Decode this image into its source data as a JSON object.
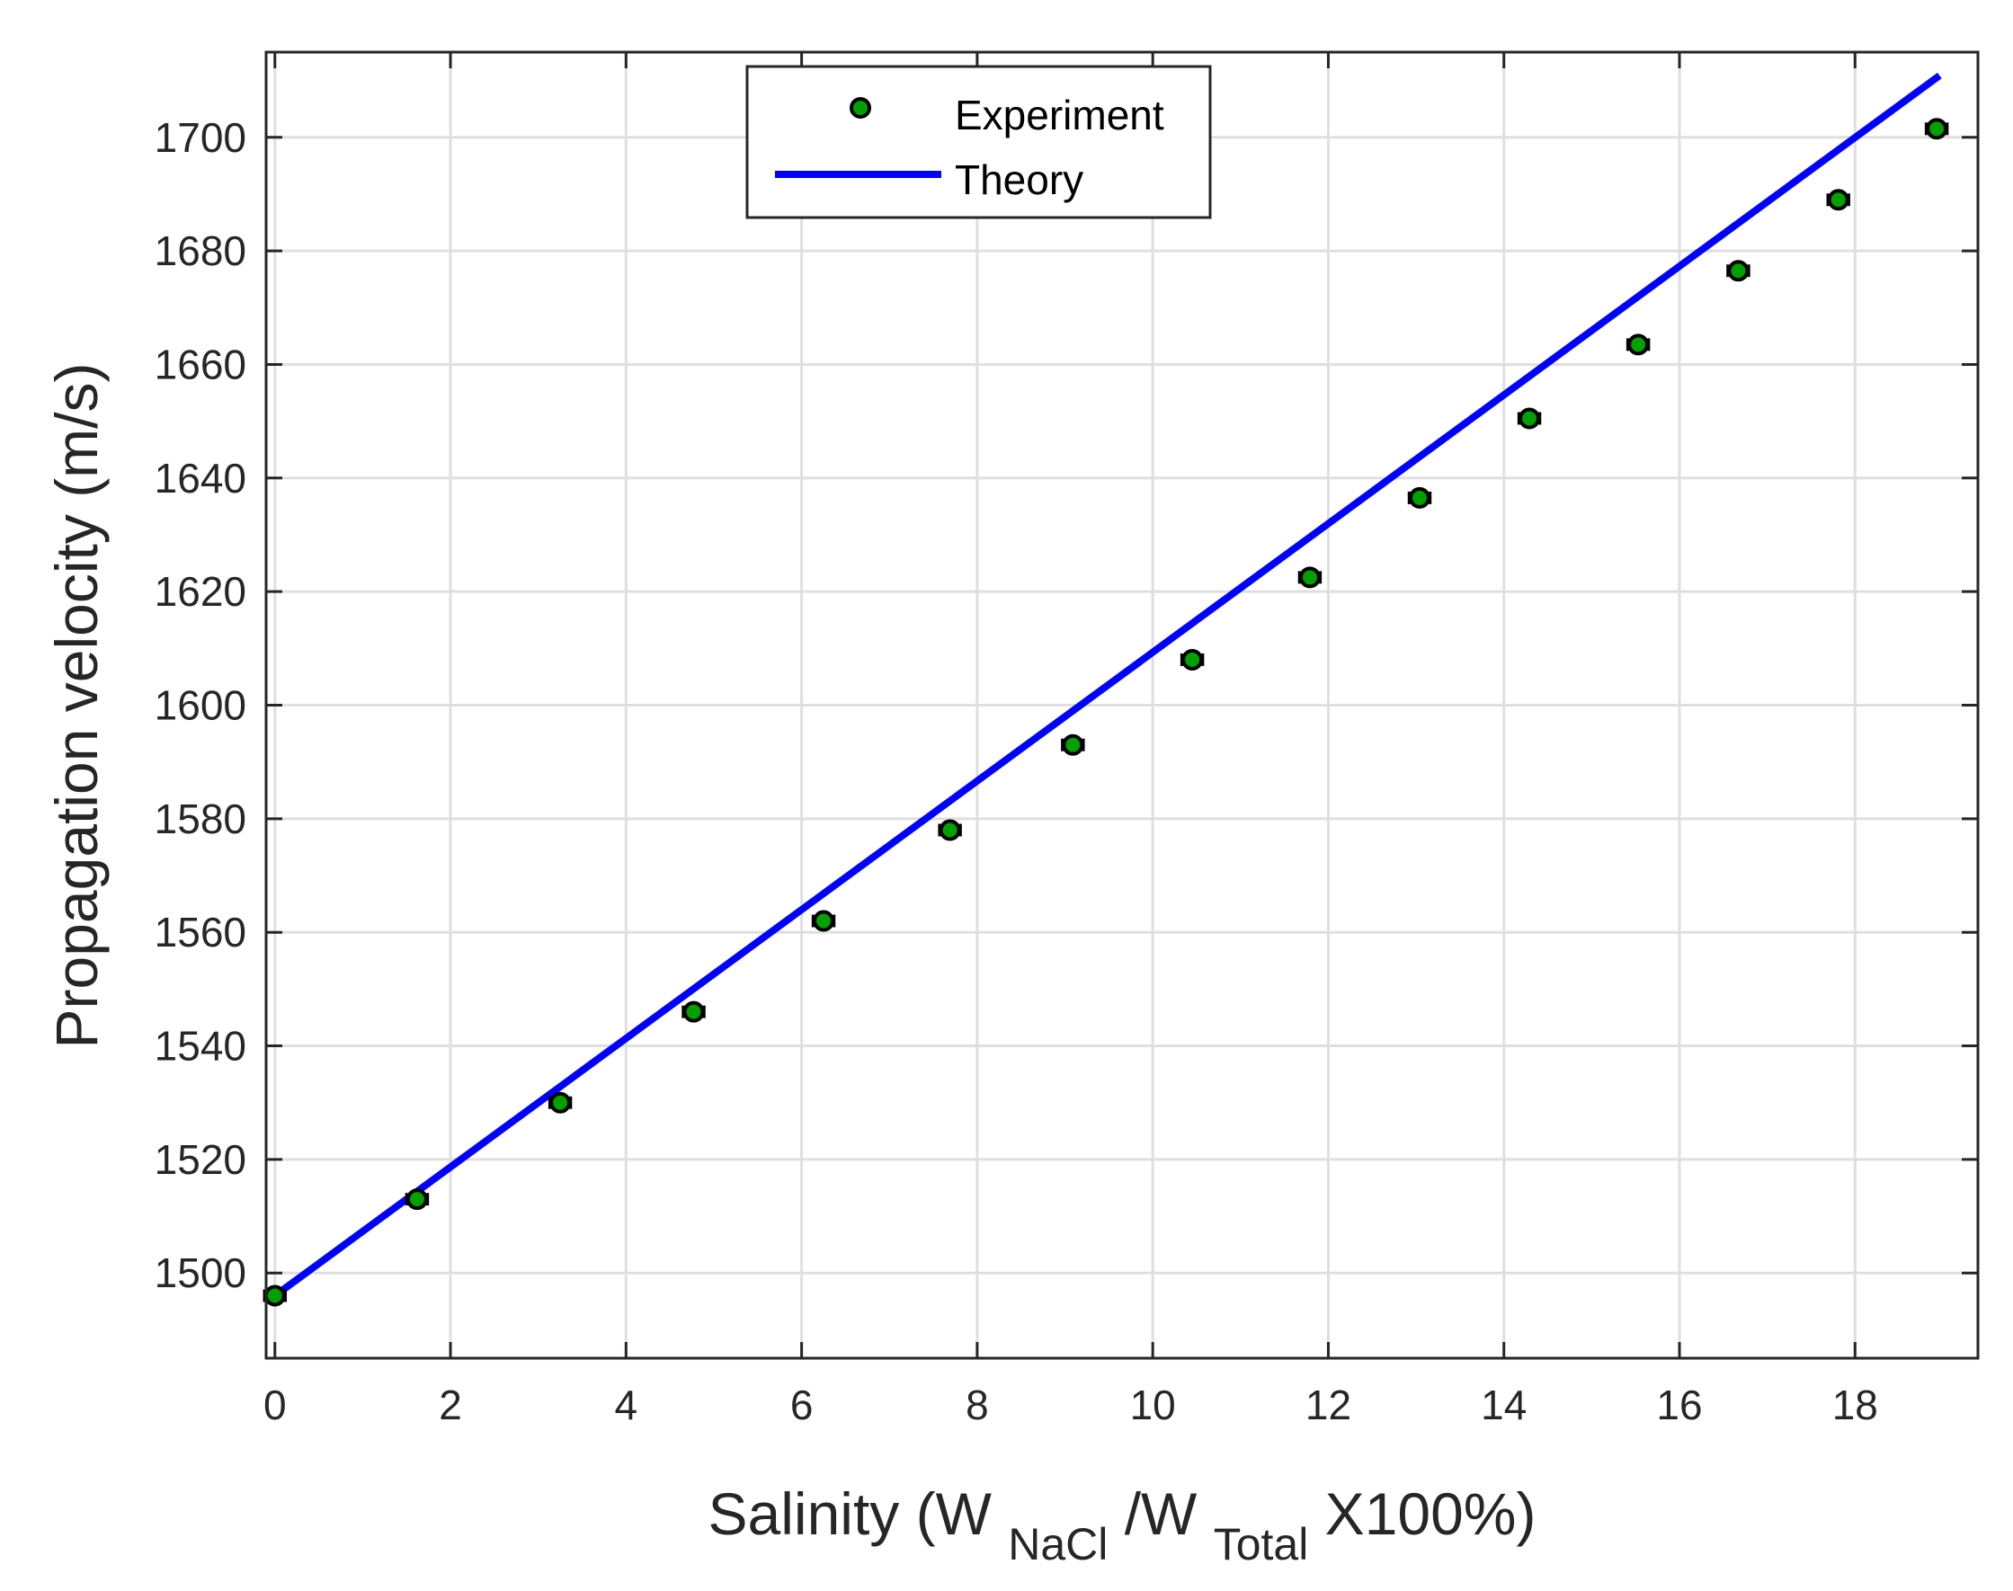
{
  "chart_data": {
    "type": "scatter",
    "title": "",
    "xlabel": {
      "prefix": "Salinity (W",
      "sub1": "NaCl",
      "middle": "/W",
      "sub2": "Total",
      "suffix": " X100%)"
    },
    "ylabel": "Propagation velocity (m/s)",
    "xlim": [
      -0.1,
      19.4
    ],
    "ylim": [
      1485,
      1715
    ],
    "xticks": [
      0,
      2,
      4,
      6,
      8,
      10,
      12,
      14,
      16,
      18
    ],
    "yticks": [
      1500,
      1520,
      1540,
      1560,
      1580,
      1600,
      1620,
      1640,
      1660,
      1680,
      1700
    ],
    "grid": true,
    "legend_position": "top-center",
    "series": [
      {
        "name": "Experiment",
        "kind": "markers-with-xerror",
        "marker_color": "#00a000",
        "edge_color": "#000000",
        "x": [
          0.0,
          1.62,
          3.25,
          4.77,
          6.25,
          7.69,
          9.09,
          10.45,
          11.79,
          13.04,
          14.29,
          15.53,
          16.67,
          17.81,
          18.93
        ],
        "y": [
          1496,
          1513,
          1530,
          1546,
          1562,
          1578,
          1593,
          1608,
          1622.5,
          1636.5,
          1650.5,
          1663.5,
          1676.5,
          1689,
          1701.5
        ],
        "xerr": [
          0.12,
          0.12,
          0.12,
          0.12,
          0.12,
          0.12,
          0.12,
          0.12,
          0.12,
          0.12,
          0.12,
          0.12,
          0.12,
          0.12,
          0.12
        ]
      },
      {
        "name": "Theory",
        "kind": "line",
        "color": "#0000ff",
        "x": [
          0.0,
          18.93
        ],
        "y": [
          1496,
          1710.5
        ]
      }
    ]
  }
}
